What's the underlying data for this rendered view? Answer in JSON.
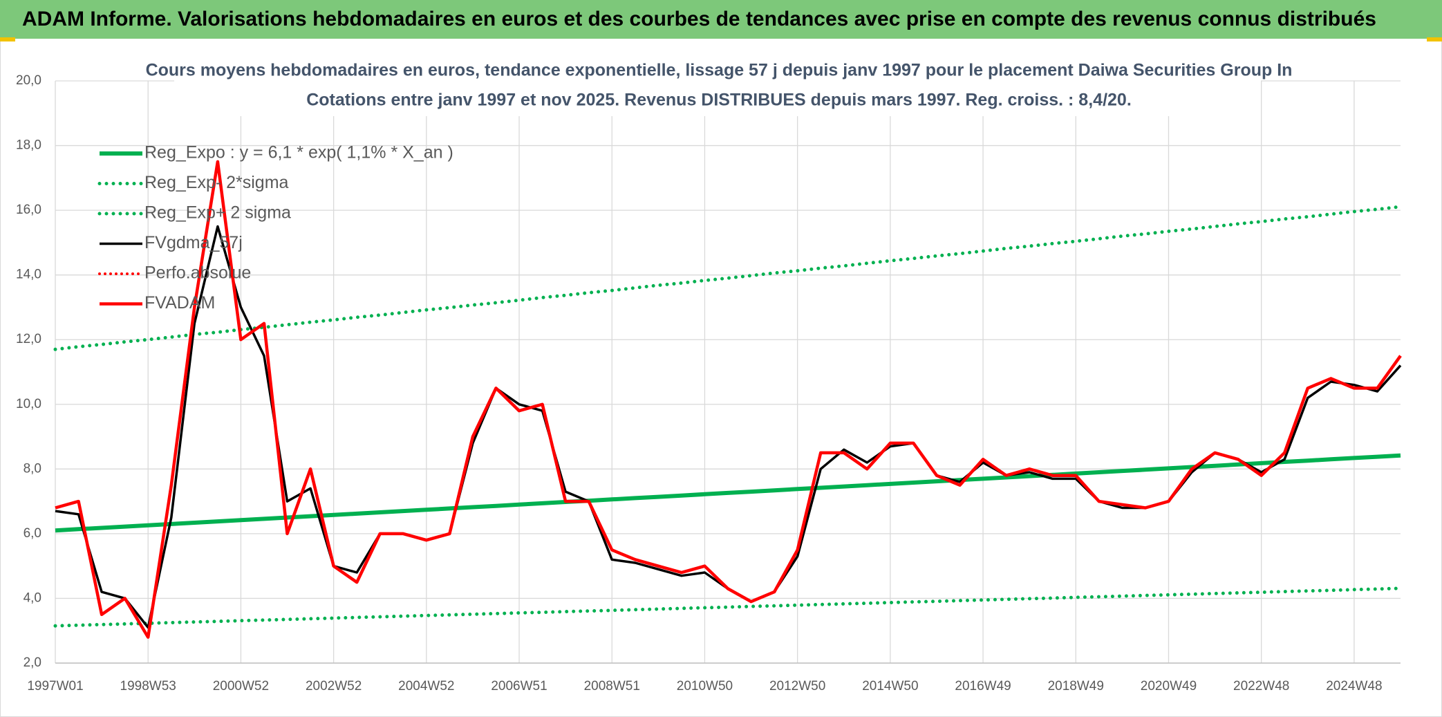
{
  "header": {
    "title": "ADAM Informe. Valorisations hebdomadaires en euros et des courbes de tendances avec prise en compte des revenus connus distribués"
  },
  "chart_data": {
    "type": "line",
    "title": "Cours moyens hebdomadaires en euros, tendance exponentielle, lissage 57 j depuis janv 1997 pour le placement Daiwa Securities Group In",
    "subtitle": "Cotations entre janv 1997 et nov 2025. Revenus DISTRIBUES depuis mars 1997. Reg. croiss. : 8,4/20.",
    "categories": [
      "1997W01",
      null,
      null,
      null,
      "1998W53",
      null,
      null,
      null,
      "2000W52",
      null,
      null,
      null,
      "2002W52",
      null,
      null,
      null,
      "2004W52",
      null,
      null,
      null,
      "2006W51",
      null,
      null,
      null,
      "2008W51",
      null,
      null,
      null,
      "2010W50",
      null,
      null,
      null,
      "2012W50",
      null,
      null,
      null,
      "2014W50",
      null,
      null,
      null,
      "2016W49",
      null,
      null,
      null,
      "2018W49",
      null,
      null,
      null,
      "2020W49",
      null,
      null,
      null,
      "2022W48",
      null,
      null,
      null,
      "2024W48",
      null,
      null
    ],
    "ylim": [
      2,
      20
    ],
    "yticks": [
      {
        "value": 2,
        "label": "2,0"
      },
      {
        "value": 4,
        "label": "4,0"
      },
      {
        "value": 6,
        "label": "6,0"
      },
      {
        "value": 8,
        "label": "8,0"
      },
      {
        "value": 10,
        "label": "10,0"
      },
      {
        "value": 12,
        "label": "12,0"
      },
      {
        "value": 14,
        "label": "14,0"
      },
      {
        "value": 16,
        "label": "16,0"
      },
      {
        "value": 18,
        "label": "18,0"
      },
      {
        "value": 20,
        "label": "20,0"
      }
    ],
    "grid": true,
    "legend": "upper left",
    "series": [
      {
        "name": "Reg_Expo : y = 6,1 * exp( 1,1% *  X_an )",
        "color": "#00b050",
        "linestyle": "solid",
        "values": [
          6.1,
          6.14,
          6.18,
          6.22,
          6.26,
          6.3,
          6.34,
          6.38,
          6.42,
          6.46,
          6.5,
          6.54,
          6.58,
          6.62,
          6.66,
          6.7,
          6.74,
          6.78,
          6.82,
          6.86,
          6.9,
          6.94,
          6.98,
          7.02,
          7.06,
          7.1,
          7.14,
          7.18,
          7.22,
          7.26,
          7.3,
          7.34,
          7.38,
          7.42,
          7.46,
          7.5,
          7.54,
          7.58,
          7.62,
          7.66,
          7.7,
          7.74,
          7.78,
          7.82,
          7.86,
          7.9,
          7.94,
          7.98,
          8.02,
          8.06,
          8.1,
          8.14,
          8.18,
          8.22,
          8.26,
          8.3,
          8.34,
          8.38,
          8.42
        ]
      },
      {
        "name": "Reg_Exp- 2*sigma",
        "color": "#00b050",
        "linestyle": "dotted",
        "values": [
          3.15,
          3.17,
          3.19,
          3.21,
          3.23,
          3.25,
          3.27,
          3.29,
          3.31,
          3.33,
          3.35,
          3.37,
          3.39,
          3.41,
          3.43,
          3.45,
          3.47,
          3.49,
          3.51,
          3.53,
          3.55,
          3.57,
          3.59,
          3.61,
          3.63,
          3.65,
          3.67,
          3.69,
          3.71,
          3.73,
          3.75,
          3.77,
          3.79,
          3.81,
          3.83,
          3.85,
          3.87,
          3.89,
          3.91,
          3.93,
          3.95,
          3.97,
          3.99,
          4.01,
          4.03,
          4.05,
          4.07,
          4.09,
          4.11,
          4.13,
          4.15,
          4.17,
          4.19,
          4.21,
          4.23,
          4.25,
          4.27,
          4.29,
          4.31
        ]
      },
      {
        "name": "Reg_Exp+ 2 sigma",
        "color": "#00b050",
        "linestyle": "dotted",
        "values": [
          11.7,
          11.78,
          11.85,
          11.93,
          12.0,
          12.08,
          12.16,
          12.23,
          12.31,
          12.38,
          12.46,
          12.54,
          12.61,
          12.69,
          12.76,
          12.84,
          12.92,
          12.99,
          13.07,
          13.14,
          13.22,
          13.3,
          13.37,
          13.45,
          13.52,
          13.6,
          13.68,
          13.75,
          13.83,
          13.9,
          13.98,
          14.06,
          14.13,
          14.21,
          14.28,
          14.36,
          14.44,
          14.51,
          14.59,
          14.66,
          14.74,
          14.82,
          14.89,
          14.97,
          15.04,
          15.12,
          15.2,
          15.27,
          15.35,
          15.42,
          15.5,
          15.58,
          15.65,
          15.73,
          15.8,
          15.88,
          15.96,
          16.03,
          16.11
        ]
      },
      {
        "name": "FVgdma_57j",
        "color": "#000000",
        "linestyle": "solid",
        "values": [
          6.7,
          6.6,
          4.2,
          4.0,
          3.1,
          6.5,
          12.5,
          15.5,
          13.0,
          11.5,
          7.0,
          7.4,
          5.0,
          4.8,
          6.0,
          6.0,
          5.8,
          6.0,
          8.8,
          10.5,
          10.0,
          9.8,
          7.3,
          7.0,
          5.2,
          5.1,
          4.9,
          4.7,
          4.8,
          4.3,
          3.9,
          4.2,
          5.3,
          8.0,
          8.6,
          8.2,
          8.7,
          8.8,
          7.8,
          7.6,
          8.2,
          7.8,
          7.9,
          7.7,
          7.7,
          7.0,
          6.8,
          6.8,
          7.0,
          7.9,
          8.5,
          8.3,
          7.9,
          8.3,
          10.2,
          10.7,
          10.6,
          10.4,
          11.2
        ]
      },
      {
        "name": "Perfo.absolue",
        "color": "#ff0000",
        "linestyle": "dotted",
        "values": [
          null,
          null,
          null,
          null,
          null,
          null,
          null,
          null,
          null,
          null,
          null,
          null,
          null,
          null,
          null,
          null,
          null,
          null,
          null,
          null,
          null,
          null,
          null,
          null,
          null,
          null,
          null,
          null,
          null,
          null,
          null,
          null,
          null,
          null,
          null,
          null,
          null,
          null,
          null,
          null,
          null,
          null,
          null,
          null,
          null,
          null,
          null,
          null,
          null,
          null,
          null,
          null,
          null,
          null,
          null,
          null,
          null,
          null,
          null
        ]
      },
      {
        "name": "FVADAM",
        "color": "#ff0000",
        "linestyle": "solid",
        "values": [
          6.8,
          7.0,
          3.5,
          4.0,
          2.8,
          7.5,
          13.0,
          17.5,
          12.0,
          12.5,
          6.0,
          8.0,
          5.0,
          4.5,
          6.0,
          6.0,
          5.8,
          6.0,
          9.0,
          10.5,
          9.8,
          10.0,
          7.0,
          7.0,
          5.5,
          5.2,
          5.0,
          4.8,
          5.0,
          4.3,
          3.9,
          4.2,
          5.5,
          8.5,
          8.5,
          8.0,
          8.8,
          8.8,
          7.8,
          7.5,
          8.3,
          7.8,
          8.0,
          7.8,
          7.8,
          7.0,
          6.9,
          6.8,
          7.0,
          8.0,
          8.5,
          8.3,
          7.8,
          8.5,
          10.5,
          10.8,
          10.5,
          10.5,
          11.5
        ]
      }
    ]
  }
}
